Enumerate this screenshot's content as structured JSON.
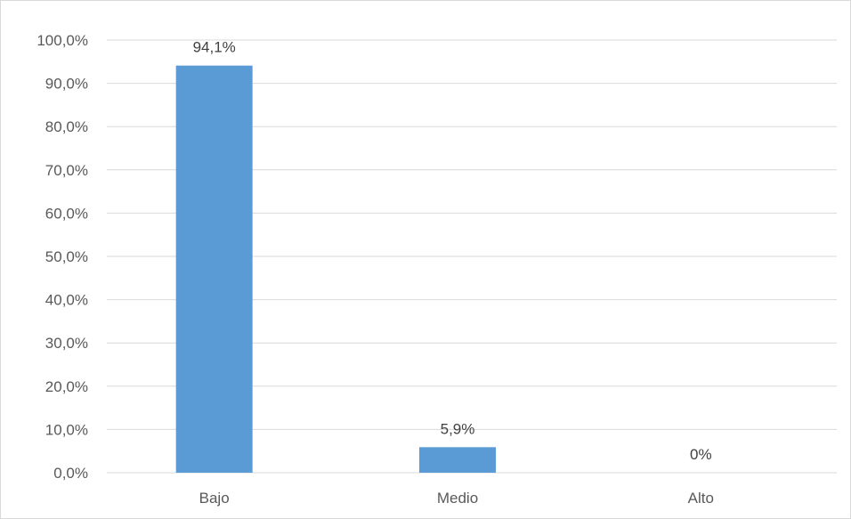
{
  "chart_data": {
    "type": "bar",
    "categories": [
      "Bajo",
      "Medio",
      "Alto"
    ],
    "values": [
      94.1,
      5.9,
      0
    ],
    "data_labels": [
      "94,1%",
      "5,9%",
      "0%"
    ],
    "y_tick_labels": [
      "0,0%",
      "10,0%",
      "20,0%",
      "30,0%",
      "40,0%",
      "50,0%",
      "60,0%",
      "70,0%",
      "80,0%",
      "90,0%",
      "100,0%"
    ],
    "ylim": [
      0,
      100
    ],
    "y_tick_step": 10,
    "grid": true,
    "legend": "none",
    "bar_color": "#5b9bd5",
    "grid_color": "#d9d9d9"
  }
}
